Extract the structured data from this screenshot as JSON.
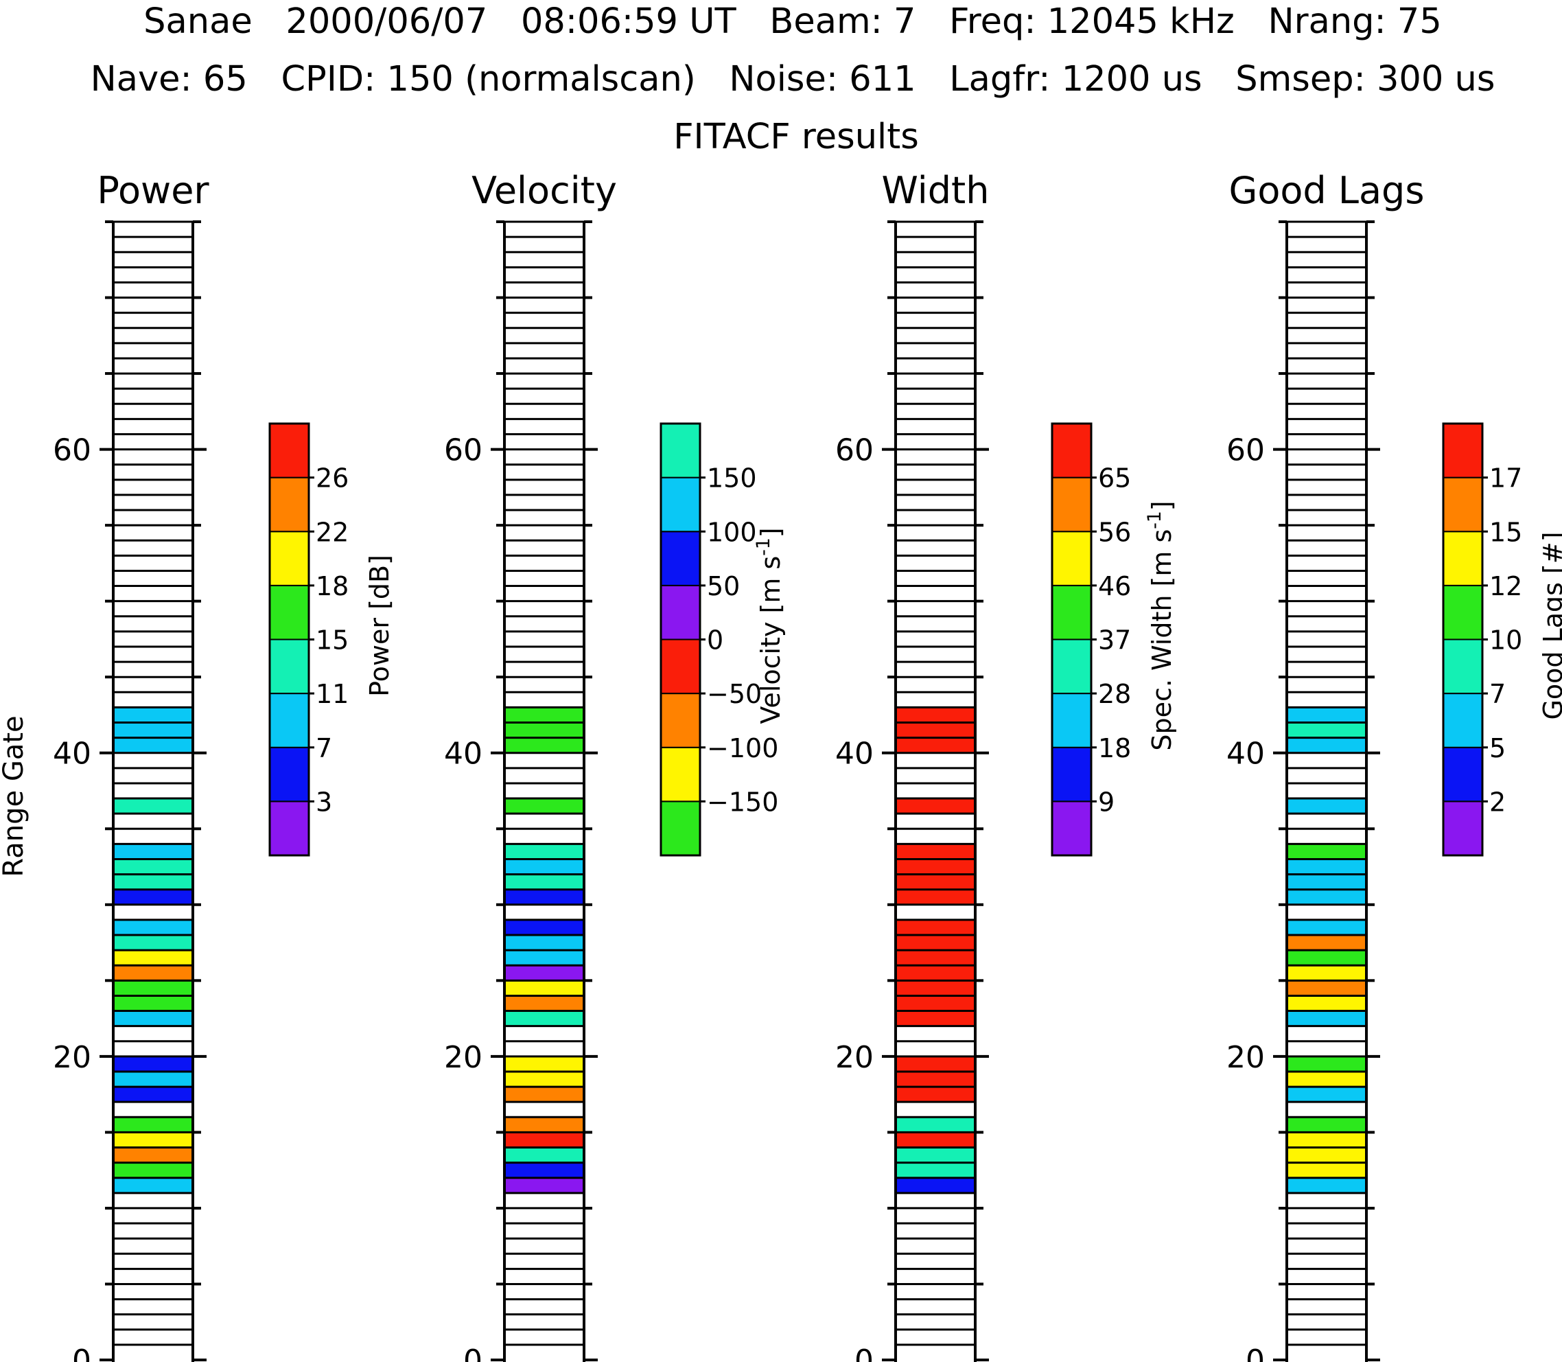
{
  "header": {
    "line1": "Sanae   2000/06/07   08:06:59 UT   Beam: 7   Freq: 12045 kHz   Nrang: 75",
    "line2": "Nave: 65   CPID: 150 (normalscan)   Noise: 611   Lagfr: 1200 us   Smsep: 300 us",
    "line3": "FITACF results"
  },
  "axis": {
    "ylabel": "Range Gate",
    "ylim": [
      0,
      75
    ],
    "yticks": [
      "0",
      "20",
      "40",
      "60"
    ]
  },
  "colors": {
    "purple": "#8a17f0",
    "blue": "#0a14f5",
    "cyan": "#0ac8f5",
    "teal": "#14f0b4",
    "green": "#2ce81c",
    "yellow": "#fff500",
    "orange": "#ff8200",
    "red": "#fa1e0a",
    "empty": "#ffffff"
  },
  "chart_data": [
    {
      "type": "heatmap",
      "title": "Power",
      "colorbar_title": "Power [dB]",
      "colorbar_ticks": [
        "3",
        "7",
        "11",
        "15",
        "18",
        "22",
        "26"
      ],
      "colorbar_colors": [
        "purple",
        "blue",
        "cyan",
        "teal",
        "green",
        "yellow",
        "orange",
        "red"
      ],
      "range_gates": [
        11,
        12,
        13,
        14,
        15,
        17,
        18,
        19,
        22,
        23,
        24,
        25,
        26,
        27,
        28,
        30,
        31,
        32,
        33,
        36,
        40,
        41,
        42
      ],
      "colors": [
        "cyan",
        "green",
        "orange",
        "yellow",
        "green",
        "blue",
        "cyan",
        "blue",
        "cyan",
        "green",
        "green",
        "orange",
        "yellow",
        "teal",
        "cyan",
        "blue",
        "teal",
        "teal",
        "cyan",
        "teal",
        "cyan",
        "cyan",
        "cyan"
      ]
    },
    {
      "type": "heatmap",
      "title": "Velocity",
      "colorbar_title": "Velocity [m s^-1]",
      "colorbar_ticks": [
        "−150",
        "−100",
        "−50",
        "0",
        "50",
        "100",
        "150"
      ],
      "colorbar_colors": [
        "green",
        "yellow",
        "orange",
        "red",
        "purple",
        "blue",
        "cyan",
        "teal"
      ],
      "range_gates": [
        11,
        12,
        13,
        14,
        15,
        17,
        18,
        19,
        22,
        23,
        24,
        25,
        26,
        27,
        28,
        30,
        31,
        32,
        33,
        36,
        40,
        41,
        42
      ],
      "colors": [
        "purple",
        "blue",
        "teal",
        "red",
        "orange",
        "orange",
        "yellow",
        "yellow",
        "teal",
        "orange",
        "yellow",
        "purple",
        "cyan",
        "cyan",
        "blue",
        "blue",
        "teal",
        "cyan",
        "teal",
        "green",
        "green",
        "green",
        "green"
      ]
    },
    {
      "type": "heatmap",
      "title": "Width",
      "colorbar_title": "Spec. Width [m s^-1]",
      "colorbar_ticks": [
        "9",
        "18",
        "28",
        "37",
        "46",
        "56",
        "65"
      ],
      "colorbar_colors": [
        "purple",
        "blue",
        "cyan",
        "teal",
        "green",
        "yellow",
        "orange",
        "red"
      ],
      "range_gates": [
        11,
        12,
        13,
        14,
        15,
        17,
        18,
        19,
        22,
        23,
        24,
        25,
        26,
        27,
        28,
        30,
        31,
        32,
        33,
        36,
        40,
        41,
        42
      ],
      "colors": [
        "blue",
        "teal",
        "teal",
        "red",
        "teal",
        "red",
        "red",
        "red",
        "red",
        "red",
        "red",
        "red",
        "red",
        "red",
        "red",
        "red",
        "red",
        "red",
        "red",
        "red",
        "red",
        "red",
        "red"
      ]
    },
    {
      "type": "heatmap",
      "title": "Good Lags",
      "colorbar_title": "Good Lags [#]",
      "colorbar_ticks": [
        "2",
        "5",
        "7",
        "10",
        "12",
        "15",
        "17"
      ],
      "colorbar_colors": [
        "purple",
        "blue",
        "cyan",
        "teal",
        "green",
        "yellow",
        "orange",
        "red"
      ],
      "range_gates": [
        11,
        12,
        13,
        14,
        15,
        17,
        18,
        19,
        22,
        23,
        24,
        25,
        26,
        27,
        28,
        30,
        31,
        32,
        33,
        36,
        40,
        41,
        42
      ],
      "colors": [
        "cyan",
        "yellow",
        "yellow",
        "yellow",
        "green",
        "cyan",
        "yellow",
        "green",
        "cyan",
        "yellow",
        "orange",
        "yellow",
        "green",
        "orange",
        "cyan",
        "cyan",
        "cyan",
        "cyan",
        "green",
        "cyan",
        "cyan",
        "teal",
        "cyan"
      ]
    }
  ]
}
